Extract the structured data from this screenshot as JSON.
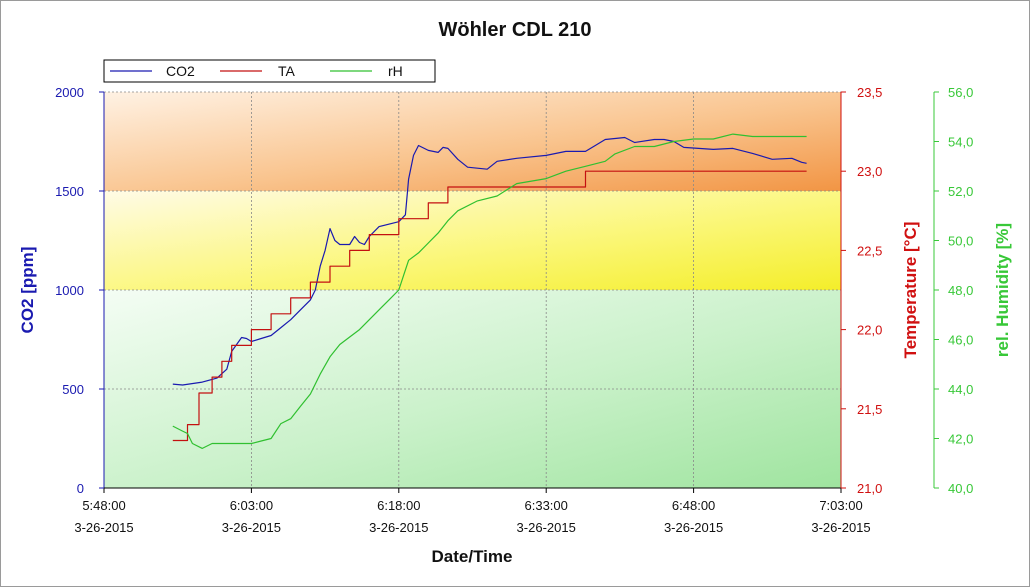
{
  "chart_data": {
    "type": "line",
    "title": "Wöhler CDL 210",
    "xlabel": "Date/Time",
    "x_ticks": [
      {
        "time": "5:48:00",
        "date": "3-26-2015"
      },
      {
        "time": "6:03:00",
        "date": "3-26-2015"
      },
      {
        "time": "6:18:00",
        "date": "3-26-2015"
      },
      {
        "time": "6:33:00",
        "date": "3-26-2015"
      },
      {
        "time": "6:48:00",
        "date": "3-26-2015"
      },
      {
        "time": "7:03:00",
        "date": "3-26-2015"
      }
    ],
    "xlim": [
      "5:48:00",
      "7:03:00"
    ],
    "legend": {
      "placement": "top-left",
      "entries": [
        "CO2",
        "TA",
        "rH"
      ]
    },
    "bands": [
      {
        "from": 1500,
        "to": 2000,
        "color": "#f39a4a",
        "axis": "CO2 [ppm]"
      },
      {
        "from": 1000,
        "to": 1500,
        "color": "#f7f23a",
        "axis": "CO2 [ppm]"
      },
      {
        "from": 0,
        "to": 1000,
        "color": "#a6e6a6",
        "axis": "CO2 [ppm]"
      }
    ],
    "axes": [
      {
        "id": "co2",
        "label": "CO2 [ppm]",
        "color": "#1a1ab0",
        "ylim": [
          0,
          2000
        ],
        "ticks": [
          "0",
          "500",
          "1000",
          "1500",
          "2000"
        ],
        "tick_values": [
          0,
          500,
          1000,
          1500,
          2000
        ]
      },
      {
        "id": "ta",
        "label": "Temperature [°C]",
        "color": "#d01010",
        "ylim": [
          21.0,
          23.5
        ],
        "ticks": [
          "21,0",
          "21,5",
          "22,0",
          "22,5",
          "23,0",
          "23,5"
        ],
        "tick_values": [
          21.0,
          21.5,
          22.0,
          22.5,
          23.0,
          23.5
        ]
      },
      {
        "id": "rh",
        "label": "rel. Humidity [%]",
        "color": "#38c838",
        "ylim": [
          40,
          56
        ],
        "ticks": [
          "40,0",
          "42,0",
          "44,0",
          "46,0",
          "48,0",
          "50,0",
          "52,0",
          "54,0",
          "56,0"
        ],
        "tick_values": [
          40,
          42,
          44,
          46,
          48,
          50,
          52,
          54,
          56
        ]
      }
    ],
    "series": [
      {
        "name": "CO2",
        "axis": "co2",
        "color": "#1a1ab0",
        "step": false,
        "points": [
          [
            "5:55:00",
            525
          ],
          [
            "5:56:00",
            520
          ],
          [
            "5:58:00",
            535
          ],
          [
            "5:59:30",
            555
          ],
          [
            "6:00:30",
            600
          ],
          [
            "6:01:00",
            690
          ],
          [
            "6:02:00",
            760
          ],
          [
            "6:02:30",
            755
          ],
          [
            "6:03:00",
            740
          ],
          [
            "6:04:00",
            755
          ],
          [
            "6:05:00",
            770
          ],
          [
            "6:06:00",
            810
          ],
          [
            "6:07:00",
            850
          ],
          [
            "6:08:00",
            900
          ],
          [
            "6:09:00",
            950
          ],
          [
            "6:09:30",
            1000
          ],
          [
            "6:10:00",
            1120
          ],
          [
            "6:10:30",
            1200
          ],
          [
            "6:11:00",
            1310
          ],
          [
            "6:11:30",
            1250
          ],
          [
            "6:12:00",
            1230
          ],
          [
            "6:13:00",
            1230
          ],
          [
            "6:13:30",
            1270
          ],
          [
            "6:14:00",
            1240
          ],
          [
            "6:14:30",
            1230
          ],
          [
            "6:15:00",
            1270
          ],
          [
            "6:16:00",
            1320
          ],
          [
            "6:18:00",
            1345
          ],
          [
            "6:18:40",
            1380
          ],
          [
            "6:19:00",
            1560
          ],
          [
            "6:19:30",
            1680
          ],
          [
            "6:20:00",
            1730
          ],
          [
            "6:21:00",
            1705
          ],
          [
            "6:21:30",
            1700
          ],
          [
            "6:22:00",
            1695
          ],
          [
            "6:22:30",
            1720
          ],
          [
            "6:23:00",
            1715
          ],
          [
            "6:24:00",
            1660
          ],
          [
            "6:25:00",
            1620
          ],
          [
            "6:27:00",
            1610
          ],
          [
            "6:28:00",
            1650
          ],
          [
            "6:30:00",
            1665
          ],
          [
            "6:33:00",
            1680
          ],
          [
            "6:35:00",
            1700
          ],
          [
            "6:37:00",
            1700
          ],
          [
            "6:38:00",
            1730
          ],
          [
            "6:39:00",
            1760
          ],
          [
            "6:41:00",
            1770
          ],
          [
            "6:42:00",
            1745
          ],
          [
            "6:44:00",
            1760
          ],
          [
            "6:45:00",
            1760
          ],
          [
            "6:46:00",
            1750
          ],
          [
            "6:47:00",
            1720
          ],
          [
            "6:50:00",
            1710
          ],
          [
            "6:52:00",
            1715
          ],
          [
            "6:54:00",
            1690
          ],
          [
            "6:56:00",
            1660
          ],
          [
            "6:58:00",
            1665
          ],
          [
            "6:59:00",
            1645
          ],
          [
            "6:59:30",
            1640
          ]
        ]
      },
      {
        "name": "TA",
        "axis": "ta",
        "color": "#c41010",
        "step": true,
        "points": [
          [
            "5:55:00",
            21.3
          ],
          [
            "5:56:30",
            21.4
          ],
          [
            "5:57:40",
            21.6
          ],
          [
            "5:59:00",
            21.7
          ],
          [
            "6:00:00",
            21.8
          ],
          [
            "6:01:00",
            21.9
          ],
          [
            "6:03:00",
            22.0
          ],
          [
            "6:05:00",
            22.1
          ],
          [
            "6:07:00",
            22.2
          ],
          [
            "6:09:00",
            22.3
          ],
          [
            "6:11:00",
            22.4
          ],
          [
            "6:13:00",
            22.5
          ],
          [
            "6:15:00",
            22.6
          ],
          [
            "6:18:00",
            22.7
          ],
          [
            "6:21:00",
            22.8
          ],
          [
            "6:23:00",
            22.9
          ],
          [
            "6:33:00",
            22.9
          ],
          [
            "6:37:00",
            23.0
          ],
          [
            "6:59:30",
            23.0
          ]
        ]
      },
      {
        "name": "rH",
        "axis": "rh",
        "color": "#30c030",
        "step": false,
        "points": [
          [
            "5:55:00",
            42.5
          ],
          [
            "5:56:00",
            42.3
          ],
          [
            "5:56:30",
            42.2
          ],
          [
            "5:57:00",
            41.8
          ],
          [
            "5:58:00",
            41.6
          ],
          [
            "5:59:00",
            41.8
          ],
          [
            "6:00:00",
            41.8
          ],
          [
            "6:01:00",
            41.8
          ],
          [
            "6:03:00",
            41.8
          ],
          [
            "6:04:00",
            41.9
          ],
          [
            "6:05:00",
            42.0
          ],
          [
            "6:06:00",
            42.6
          ],
          [
            "6:07:00",
            42.8
          ],
          [
            "6:08:00",
            43.3
          ],
          [
            "6:09:00",
            43.8
          ],
          [
            "6:10:00",
            44.6
          ],
          [
            "6:11:00",
            45.3
          ],
          [
            "6:12:00",
            45.8
          ],
          [
            "6:13:00",
            46.1
          ],
          [
            "6:14:00",
            46.4
          ],
          [
            "6:15:00",
            46.8
          ],
          [
            "6:16:00",
            47.2
          ],
          [
            "6:17:00",
            47.6
          ],
          [
            "6:18:00",
            48.0
          ],
          [
            "6:18:30",
            48.6
          ],
          [
            "6:19:00",
            49.2
          ],
          [
            "6:20:00",
            49.5
          ],
          [
            "6:21:00",
            49.9
          ],
          [
            "6:22:00",
            50.3
          ],
          [
            "6:23:00",
            50.8
          ],
          [
            "6:24:00",
            51.2
          ],
          [
            "6:26:00",
            51.6
          ],
          [
            "6:28:00",
            51.8
          ],
          [
            "6:30:00",
            52.3
          ],
          [
            "6:33:00",
            52.5
          ],
          [
            "6:35:00",
            52.8
          ],
          [
            "6:37:00",
            53.0
          ],
          [
            "6:39:00",
            53.2
          ],
          [
            "6:40:00",
            53.5
          ],
          [
            "6:42:00",
            53.8
          ],
          [
            "6:44:00",
            53.8
          ],
          [
            "6:46:00",
            54.0
          ],
          [
            "6:48:00",
            54.1
          ],
          [
            "6:50:00",
            54.1
          ],
          [
            "6:52:00",
            54.3
          ],
          [
            "6:54:00",
            54.2
          ],
          [
            "6:56:00",
            54.2
          ],
          [
            "6:58:00",
            54.2
          ],
          [
            "6:59:30",
            54.2
          ]
        ]
      }
    ]
  }
}
